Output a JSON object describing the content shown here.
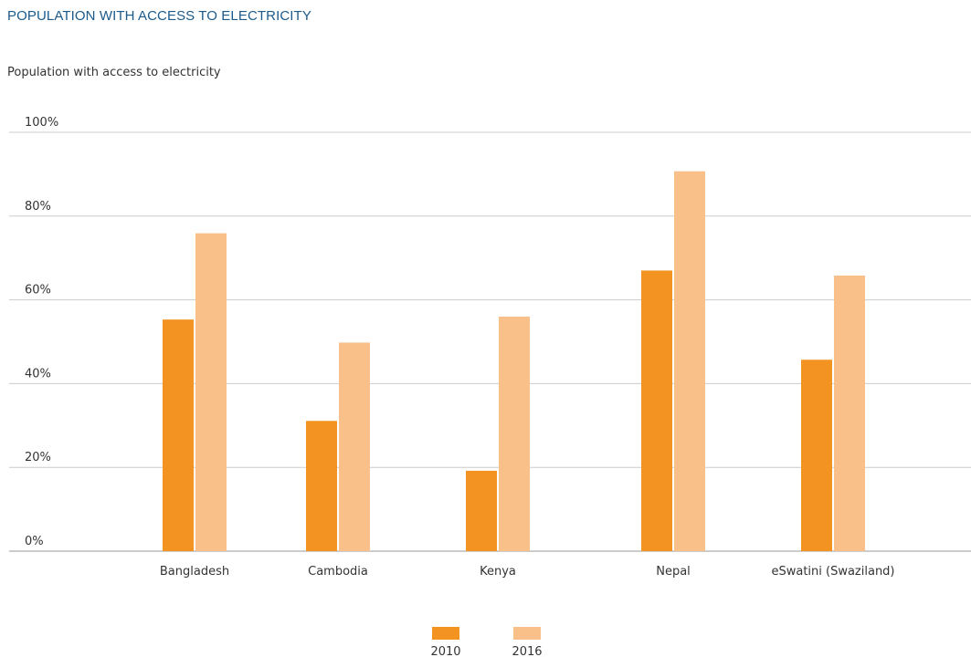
{
  "chart_data": {
    "type": "bar",
    "title": "POPULATION WITH ACCESS TO ELECTRICITY",
    "subtitle": "Population with access to electricity",
    "categories": [
      "Bangladesh",
      "Cambodia",
      "Kenya",
      "Nepal",
      "eSwatini (Swaziland)"
    ],
    "series": [
      {
        "name": "2010",
        "values": [
          55.3,
          31.1,
          19.2,
          67.0,
          45.7
        ],
        "color": "#f39422"
      },
      {
        "name": "2016",
        "values": [
          75.9,
          49.8,
          56.0,
          90.7,
          65.8
        ],
        "color": "#f9c08a"
      }
    ],
    "ylim": [
      0,
      100
    ],
    "yticks": [
      "0%",
      "20%",
      "40%",
      "60%",
      "80%",
      "100%"
    ],
    "ytick_values": [
      0,
      20,
      40,
      60,
      80,
      100
    ],
    "grid": true,
    "legend_position": "bottom-center"
  }
}
